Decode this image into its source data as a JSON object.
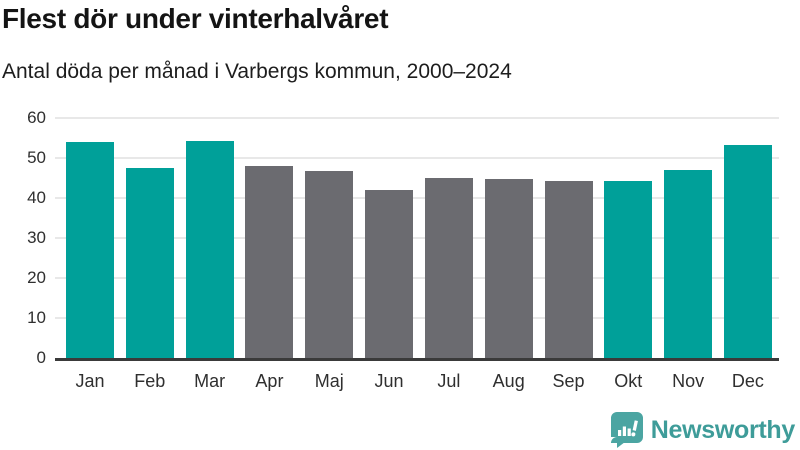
{
  "chart_data": {
    "type": "bar",
    "title": "Flest dör under vinterhalvåret",
    "subtitle": "Antal döda per månad i Varbergs kommun, 2000–2024",
    "categories": [
      "Jan",
      "Feb",
      "Mar",
      "Apr",
      "Maj",
      "Jun",
      "Jul",
      "Aug",
      "Sep",
      "Okt",
      "Nov",
      "Dec"
    ],
    "values": [
      54.0,
      47.5,
      54.2,
      47.9,
      46.7,
      42.1,
      45.0,
      44.7,
      44.2,
      44.3,
      47.1,
      53.2
    ],
    "bar_color_keys": [
      "winter",
      "winter",
      "winter",
      "summer",
      "summer",
      "summer",
      "summer",
      "summer",
      "summer",
      "winter",
      "winter",
      "winter"
    ],
    "palette": {
      "winter": "#00A099",
      "summer": "#6B6B70"
    },
    "xlabel": "",
    "ylabel": "",
    "ylim": [
      0,
      60
    ],
    "yticks": [
      0,
      10,
      20,
      30,
      40,
      50,
      60
    ],
    "grid": true,
    "legend": false,
    "gridline_color": "#e8e8e8",
    "axis_line_color": "#3a3a3a"
  },
  "footer": {
    "brand": "Newsworthy",
    "brand_color": "#3E9C99",
    "logo_color": "#4BA5A2",
    "logo_icon": "speech-bubble-bar-chart"
  }
}
